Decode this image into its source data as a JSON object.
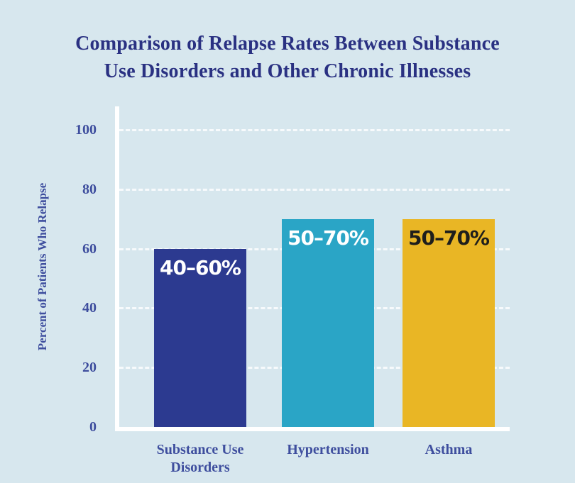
{
  "page": {
    "background_color": "#d7e7ee",
    "axis_line_color": "#ffffff",
    "title_color": "#2a3182",
    "tick_label_color": "#3e4e9e"
  },
  "title": {
    "line1": "Comparison of Relapse Rates Between Substance",
    "line2": "Use Disorders and Other Chronic Illnesses"
  },
  "chart_data": {
    "type": "bar",
    "title": "Comparison of Relapse Rates Between Substance Use Disorders and Other Chronic Illnesses",
    "ylabel": "Percent of Patients Who Relapse",
    "xlabel": "",
    "categories": [
      "Substance Use Disorders",
      "Hypertension",
      "Asthma"
    ],
    "values": [
      60,
      70,
      70
    ],
    "bar_value_labels": [
      "40–60%",
      "50–70%",
      "50–70%"
    ],
    "bar_colors": [
      "#2c3a90",
      "#2aa5c6",
      "#e9b625"
    ],
    "bar_label_colors": [
      "#ffffff",
      "#ffffff",
      "#1e1e1c"
    ],
    "yticks": [
      0,
      20,
      40,
      60,
      80,
      100
    ],
    "ylim": [
      0,
      100
    ],
    "grid": "horizontal-dashed-white",
    "legend": "none"
  }
}
